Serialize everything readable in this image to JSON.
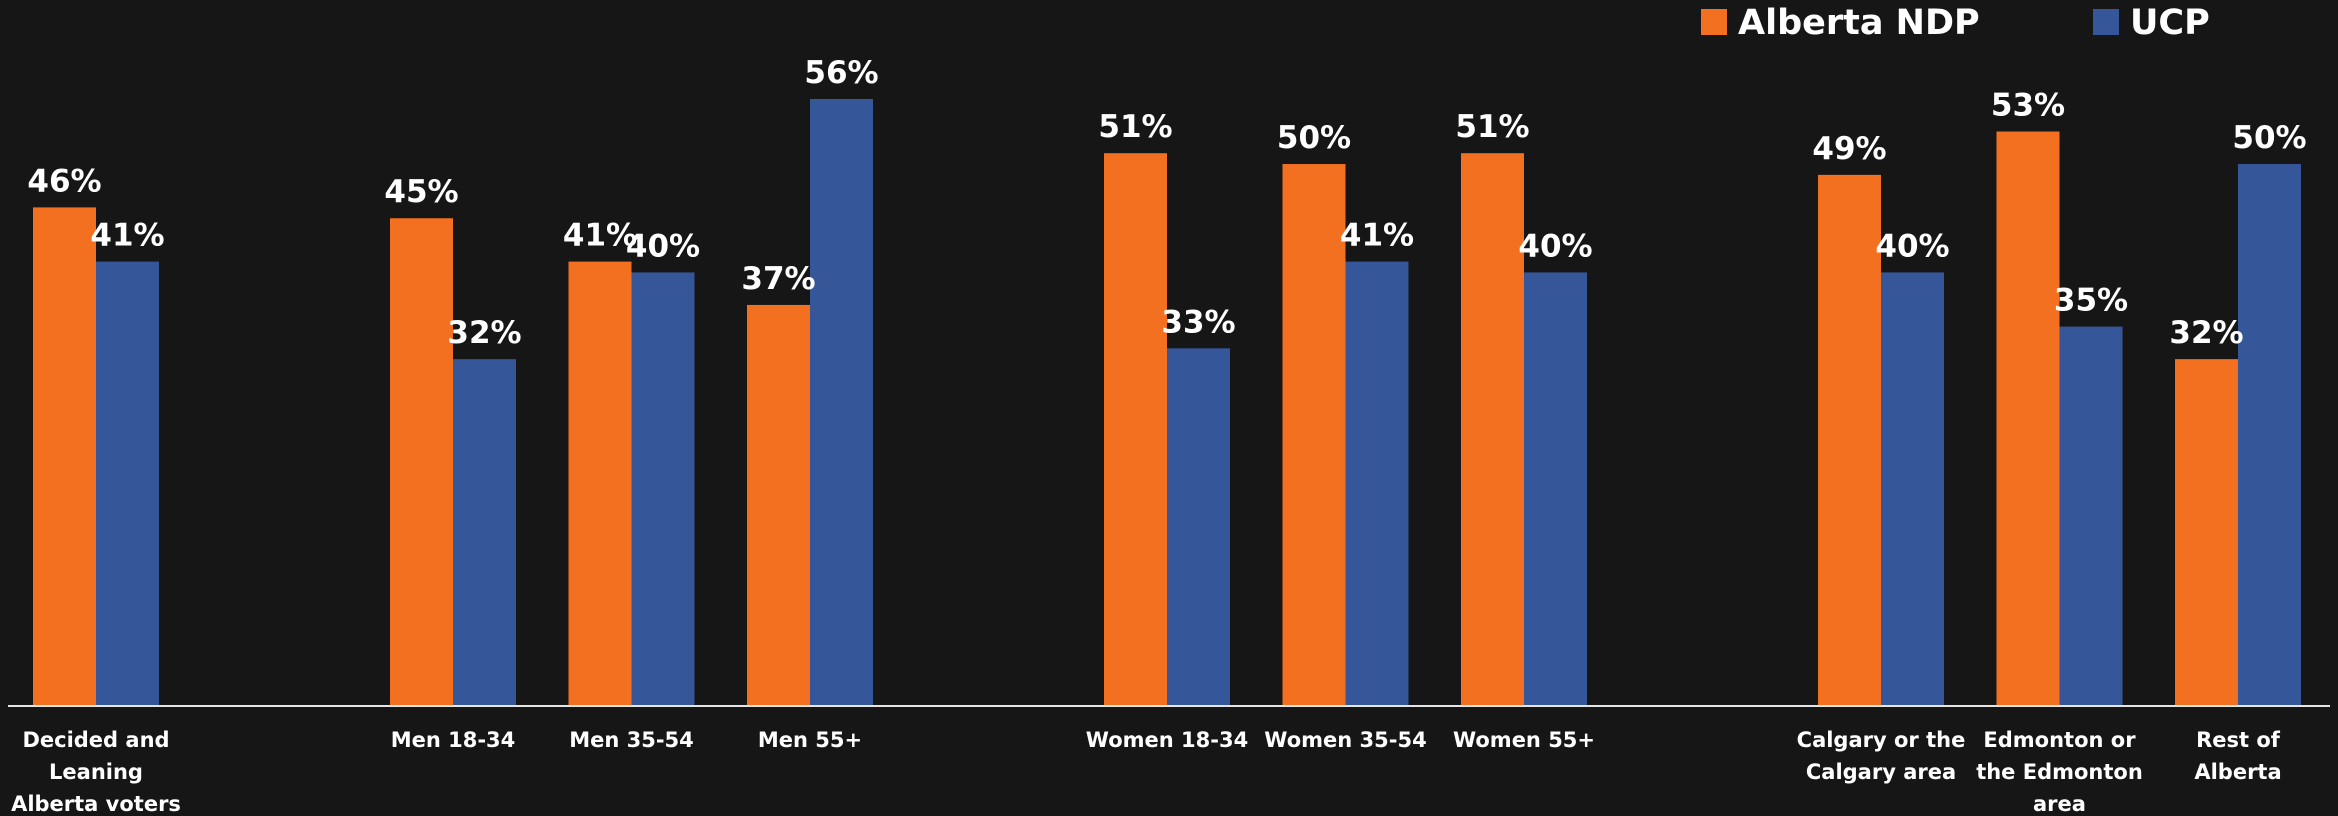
{
  "chart_data": {
    "type": "bar",
    "title": "",
    "xlabel": "",
    "ylabel": "",
    "ylim": [
      0,
      56
    ],
    "grid": false,
    "legend_position": "top-right",
    "groups": [
      [
        "Decided and Leaning Alberta voters overall"
      ],
      [
        "Men 18-34",
        "Men 35-54",
        "Men 55+"
      ],
      [
        "Women 18-34",
        "Women 35-54",
        "Women 55+"
      ],
      [
        "Calgary or the Calgary area",
        "Edmonton or the Edmonton area",
        "Rest of Alberta"
      ]
    ],
    "categories": [
      "Decided and Leaning Alberta voters overall",
      "Men 18-34",
      "Men 35-54",
      "Men 55+",
      "Women 18-34",
      "Women 35-54",
      "Women 55+",
      "Calgary or the Calgary area",
      "Edmonton or the Edmonton area",
      "Rest of Alberta"
    ],
    "series": [
      {
        "name": "Alberta NDP",
        "color": "#f37021",
        "values": [
          46,
          45,
          41,
          37,
          51,
          50,
          51,
          49,
          53,
          32
        ]
      },
      {
        "name": "UCP",
        "color": "#36569a",
        "values": [
          41,
          32,
          40,
          56,
          33,
          41,
          40,
          40,
          35,
          50
        ]
      }
    ],
    "value_suffix": "%"
  }
}
